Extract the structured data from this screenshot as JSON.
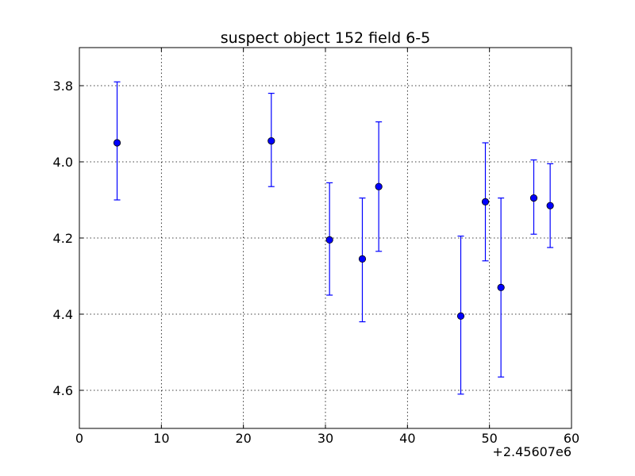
{
  "chart_data": {
    "type": "scatter",
    "title": "suspect object 152 field 6-5",
    "xlabel": "",
    "ylabel": "",
    "x_offset_label": "+2.45607e6",
    "xlim": [
      0,
      60
    ],
    "ylim": [
      4.7,
      3.7
    ],
    "y_inverted": true,
    "grid": true,
    "x_ticks": [
      0,
      10,
      20,
      30,
      40,
      50,
      60
    ],
    "x_tick_labels": [
      "0",
      "10",
      "20",
      "30",
      "40",
      "50",
      "60"
    ],
    "y_ticks": [
      3.8,
      4.0,
      4.2,
      4.4,
      4.6
    ],
    "y_tick_labels": [
      "3.8",
      "4.0",
      "4.2",
      "4.4",
      "4.6"
    ],
    "series": [
      {
        "color": "#0000ff",
        "marker": "circle",
        "points": [
          {
            "x": 4.6,
            "y": 3.95,
            "yerr_low": 3.79,
            "yerr_high": 4.1
          },
          {
            "x": 23.4,
            "y": 3.945,
            "yerr_low": 3.82,
            "yerr_high": 4.065
          },
          {
            "x": 30.5,
            "y": 4.205,
            "yerr_low": 4.055,
            "yerr_high": 4.35
          },
          {
            "x": 34.5,
            "y": 4.255,
            "yerr_low": 4.095,
            "yerr_high": 4.42
          },
          {
            "x": 36.5,
            "y": 4.065,
            "yerr_low": 3.895,
            "yerr_high": 4.235
          },
          {
            "x": 46.5,
            "y": 4.405,
            "yerr_low": 4.195,
            "yerr_high": 4.61
          },
          {
            "x": 49.5,
            "y": 4.105,
            "yerr_low": 3.95,
            "yerr_high": 4.26
          },
          {
            "x": 51.4,
            "y": 4.33,
            "yerr_low": 4.095,
            "yerr_high": 4.565
          },
          {
            "x": 55.4,
            "y": 4.095,
            "yerr_low": 3.995,
            "yerr_high": 4.19
          },
          {
            "x": 57.4,
            "y": 4.115,
            "yerr_low": 4.005,
            "yerr_high": 4.225
          }
        ]
      }
    ]
  }
}
